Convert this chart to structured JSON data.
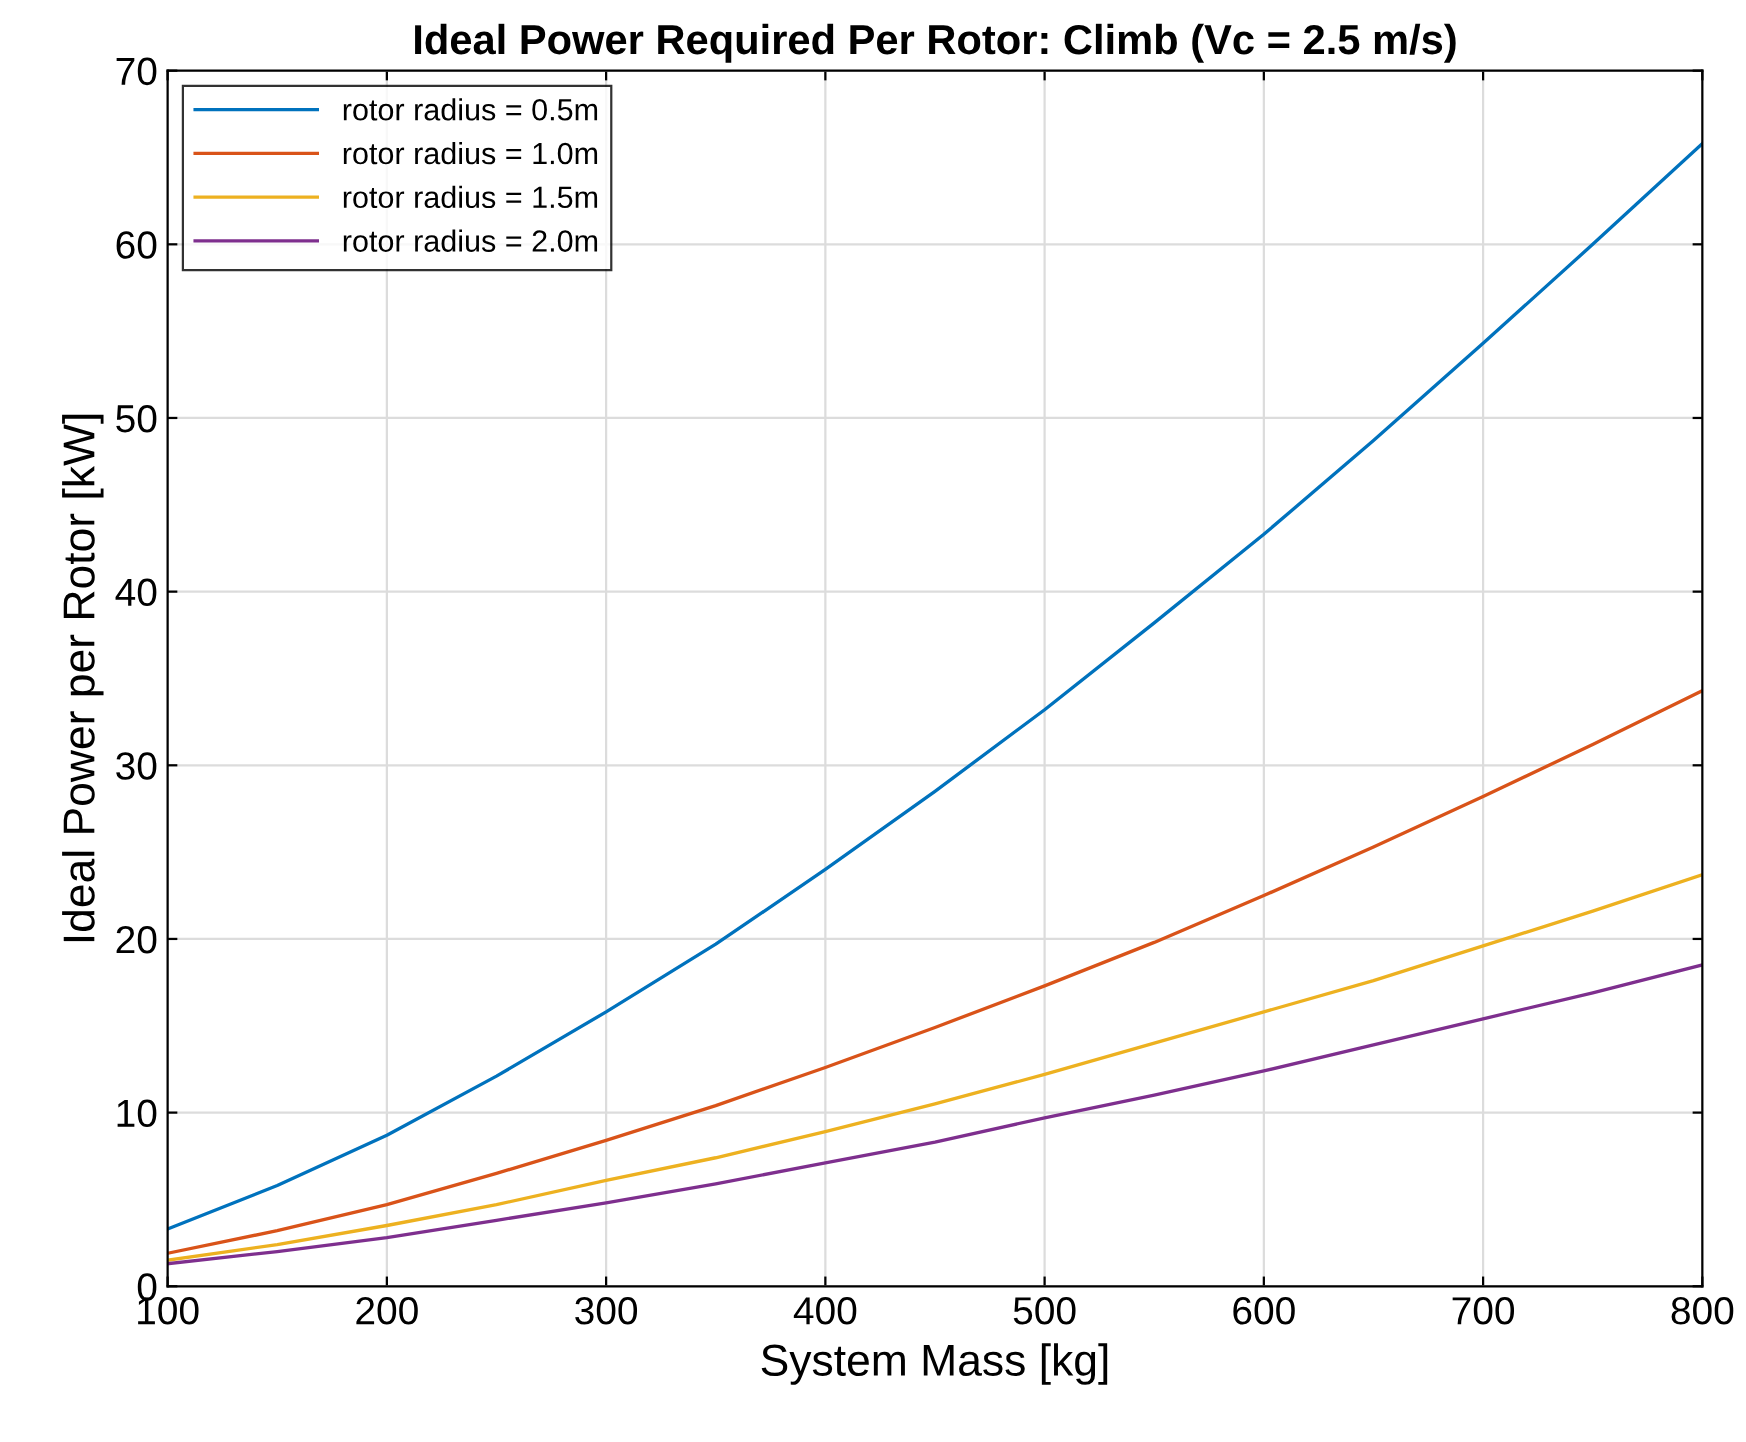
{
  "chart_data": {
    "type": "line",
    "title": "Ideal Power Required Per Rotor: Climb (Vc = 2.5 m/s)",
    "xlabel": "System Mass [kg]",
    "ylabel": "Ideal Power per Rotor [kW]",
    "x": [
      100,
      150,
      200,
      250,
      300,
      350,
      400,
      450,
      500,
      550,
      600,
      650,
      700,
      750,
      800
    ],
    "series": [
      {
        "name": "rotor radius = 0.5m",
        "color": "#0072bd",
        "values": [
          3.3,
          5.8,
          8.7,
          12.1,
          15.8,
          19.7,
          24,
          28.5,
          33.2,
          38.2,
          43.3,
          48.7,
          54.3,
          60,
          65.8
        ]
      },
      {
        "name": "rotor radius = 1.0m",
        "color": "#d95319",
        "values": [
          1.9,
          3.2,
          4.7,
          6.5,
          8.4,
          10.4,
          12.6,
          14.9,
          17.3,
          19.8,
          22.5,
          25.3,
          28.2,
          31.2,
          34.3
        ]
      },
      {
        "name": "rotor radius = 1.5m",
        "color": "#edb120",
        "values": [
          1.5,
          2.4,
          3.5,
          4.7,
          6.1,
          7.4,
          8.9,
          10.5,
          12.2,
          14,
          15.8,
          17.6,
          19.6,
          21.6,
          23.7
        ]
      },
      {
        "name": "rotor radius = 2.0m",
        "color": "#7e2f8e",
        "values": [
          1.3,
          2,
          2.8,
          3.8,
          4.8,
          5.9,
          7.1,
          8.3,
          9.7,
          11,
          12.4,
          13.9,
          15.4,
          16.9,
          18.5
        ]
      }
    ],
    "xlim": [
      100,
      800
    ],
    "ylim": [
      0,
      70
    ],
    "xticks": [
      100,
      200,
      300,
      400,
      500,
      600,
      700,
      800
    ],
    "yticks": [
      0,
      10,
      20,
      30,
      40,
      50,
      60,
      70
    ],
    "grid": true,
    "legend": "top left",
    "marker": "none",
    "line_style": "solid"
  }
}
